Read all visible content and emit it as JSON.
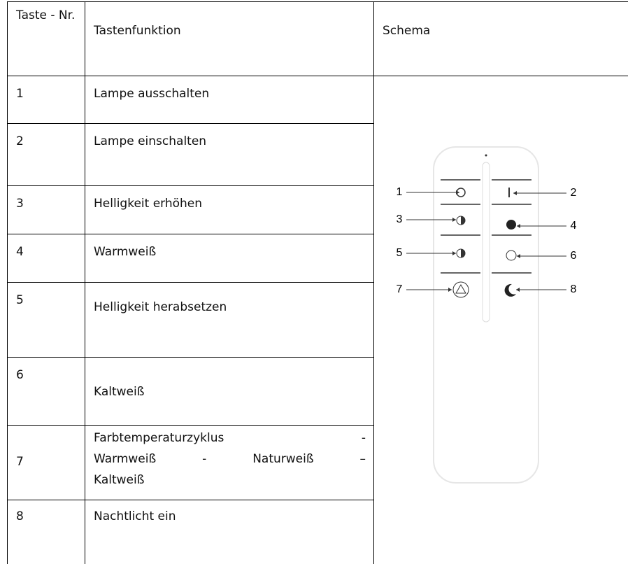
{
  "table": {
    "header": [
      "Taste - Nr.",
      "Tastenfunktion",
      "Schema"
    ],
    "rows": [
      [
        "1",
        "Lampe ausschalten"
      ],
      [
        "2",
        "Lampe einschalten"
      ],
      [
        "3",
        "Helligkeit erhöhen"
      ],
      [
        "4",
        "Warmweiß"
      ],
      [
        "5",
        "Helligkeit herabsetzen"
      ],
      [
        "6",
        "Kaltweiß"
      ],
      [
        "7",
        [
          "Farbtemperaturzyklus -",
          "Warmweiß - Naturweiß –",
          "Kaltweiß"
        ]
      ],
      [
        "8",
        "Nachtlicht ein"
      ]
    ]
  },
  "diagram": {
    "labels": [
      "1",
      "2",
      "3",
      "4",
      "5",
      "6",
      "7",
      "8"
    ]
  }
}
